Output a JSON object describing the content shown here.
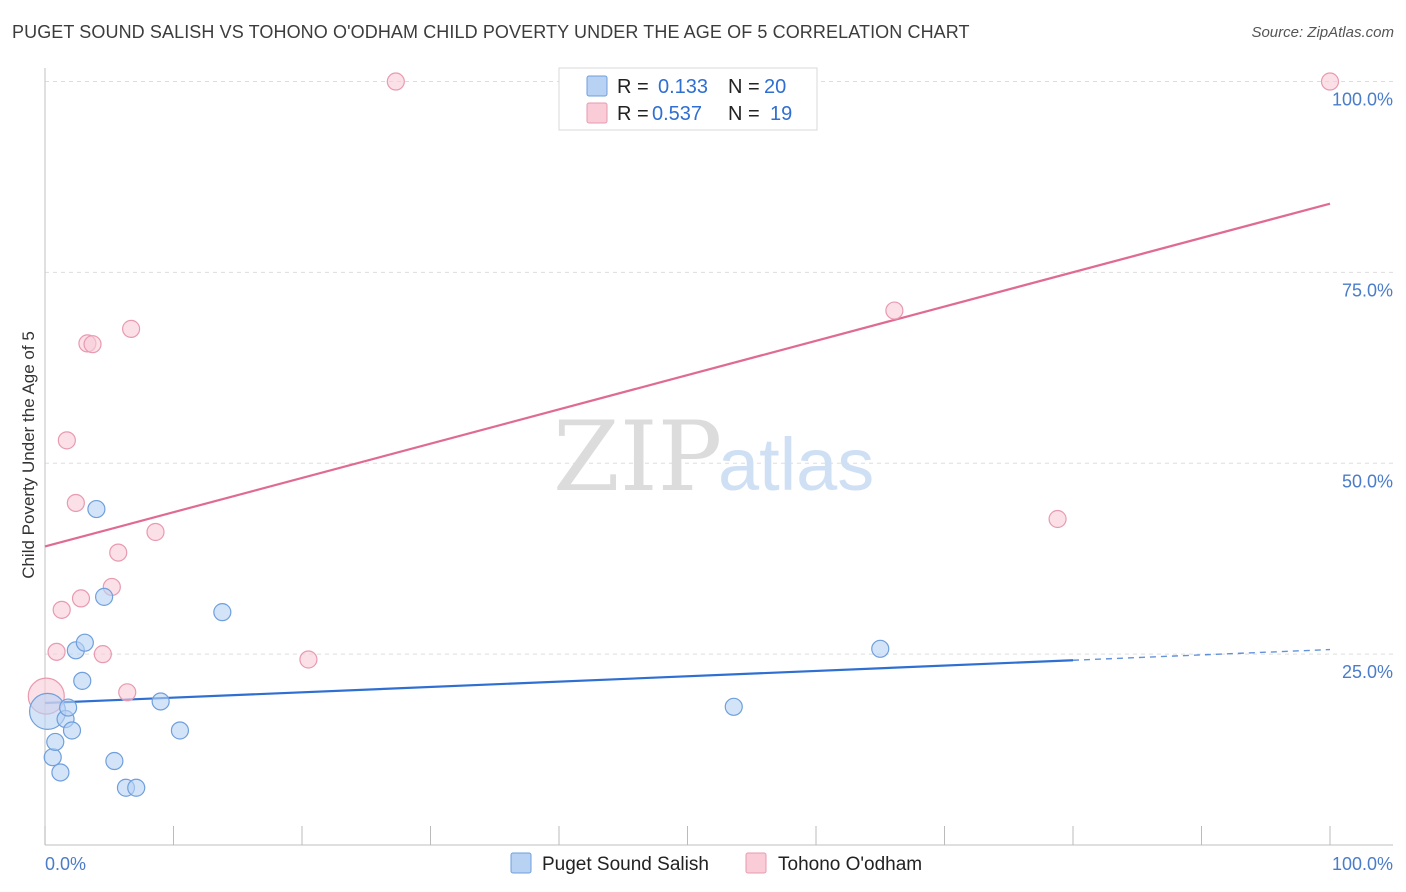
{
  "header": {
    "title": "PUGET SOUND SALISH VS TOHONO O'ODHAM CHILD POVERTY UNDER THE AGE OF 5 CORRELATION CHART",
    "source": "Source: ZipAtlas.com"
  },
  "watermark": {
    "zip": "ZIP",
    "atlas": "atlas"
  },
  "legend": {
    "r_label": "R =",
    "n_label": "N =",
    "rows": [
      {
        "r": "0.133",
        "n": "20",
        "color": "#a9c8f0"
      },
      {
        "r": "0.537",
        "n": "19",
        "color": "#f6b8ca"
      }
    ]
  },
  "bottom_legend": [
    {
      "name": "Puget Sound Salish",
      "color": "#b7d2f3"
    },
    {
      "name": "Tohono O'odham",
      "color": "#f9c6d4"
    }
  ],
  "colors": {
    "blue_fill": "#b7d2f3",
    "blue_stroke": "#6f9fdc",
    "blue_line": "#2f6fd1",
    "pink_fill": "#f9ccd8",
    "pink_stroke": "#e89ab0",
    "pink_line": "#e06b92"
  },
  "chart_data": {
    "type": "scatter",
    "title": "PUGET SOUND SALISH VS TOHONO O'ODHAM CHILD POVERTY UNDER THE AGE OF 5 CORRELATION CHART",
    "xlabel": "",
    "ylabel": "Child Poverty Under the Age of 5",
    "xlim": [
      0,
      100
    ],
    "ylim": [
      0,
      100
    ],
    "x_tick_labels": [
      "0.0%",
      "100.0%"
    ],
    "y_ticks": [
      25,
      50,
      75,
      100
    ],
    "y_tick_labels": [
      "25.0%",
      "50.0%",
      "75.0%",
      "100.0%"
    ],
    "grid": true,
    "legend_position": "top-center",
    "series": [
      {
        "name": "Puget Sound Salish",
        "points": [
          [
            0.2,
            17.5
          ],
          [
            0.6,
            11.5
          ],
          [
            0.8,
            13.5
          ],
          [
            1.2,
            9.5
          ],
          [
            1.6,
            16.5
          ],
          [
            1.8,
            18.0
          ],
          [
            2.1,
            15.0
          ],
          [
            2.4,
            25.5
          ],
          [
            2.9,
            21.5
          ],
          [
            3.1,
            26.5
          ],
          [
            4.0,
            44.0
          ],
          [
            4.6,
            32.5
          ],
          [
            5.4,
            11.0
          ],
          [
            6.3,
            7.5
          ],
          [
            7.1,
            7.5
          ],
          [
            9.0,
            18.8
          ],
          [
            10.5,
            15.0
          ],
          [
            13.8,
            30.5
          ],
          [
            53.6,
            18.1
          ],
          [
            65.0,
            25.7
          ]
        ],
        "trend": {
          "x0": 0,
          "y0": 18.6,
          "x1": 80,
          "y1": 24.2,
          "dashed_to_x": 100,
          "dashed_to_y": 25.6
        }
      },
      {
        "name": "Tohono O'odham",
        "points": [
          [
            0.1,
            19.5
          ],
          [
            0.9,
            25.3
          ],
          [
            1.3,
            30.8
          ],
          [
            1.7,
            53.0
          ],
          [
            2.4,
            44.8
          ],
          [
            2.8,
            32.3
          ],
          [
            3.3,
            65.7
          ],
          [
            3.7,
            65.6
          ],
          [
            4.5,
            25.0
          ],
          [
            5.2,
            33.8
          ],
          [
            5.7,
            38.3
          ],
          [
            6.4,
            20.0
          ],
          [
            6.7,
            67.6
          ],
          [
            8.6,
            41.0
          ],
          [
            20.5,
            24.3
          ],
          [
            27.3,
            100.0
          ],
          [
            66.1,
            70.0
          ],
          [
            78.8,
            42.7
          ],
          [
            100.0,
            100.0
          ]
        ],
        "trend": {
          "x0": 0,
          "y0": 39.1,
          "x1": 100,
          "y1": 84.0
        }
      }
    ]
  }
}
